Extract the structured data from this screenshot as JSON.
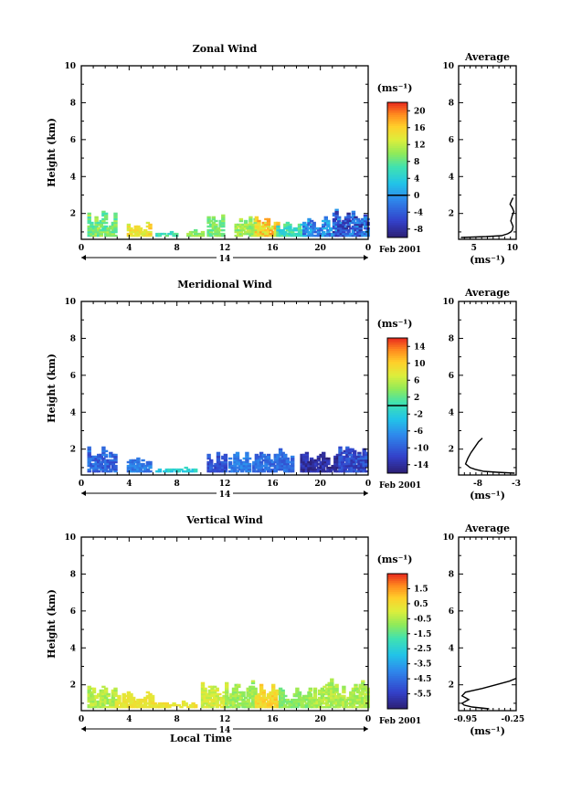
{
  "chart_data": [
    {
      "type": "heatmap",
      "title": "Zonal Wind",
      "ylabel": "Height (km)",
      "xlabel": "",
      "xticks": [
        "0",
        "4",
        "8",
        "12",
        "16",
        "20",
        "0"
      ],
      "yticks": [
        "2",
        "4",
        "6",
        "8",
        "10"
      ],
      "xlim": [
        0,
        24
      ],
      "ylim": [
        0.6,
        10
      ],
      "day_label": "14",
      "date_label": "Feb 2001",
      "colorbar": {
        "unit": "(ms⁻¹)",
        "ticks": [
          "20",
          "16",
          "12",
          "8",
          "4",
          "0",
          "-4",
          "-8"
        ],
        "range": [
          -10,
          22
        ],
        "zero_line": 0
      },
      "clusters": [
        {
          "t": [
            0.5,
            2.8
          ],
          "h": [
            0.75,
            2.25
          ],
          "v": [
            6,
            12
          ]
        },
        {
          "t": [
            3.8,
            5.8
          ],
          "h": [
            0.75,
            1.65
          ],
          "v": [
            12,
            17
          ]
        },
        {
          "t": [
            6.2,
            8.0
          ],
          "h": [
            0.75,
            1.0
          ],
          "v": [
            4,
            9
          ]
        },
        {
          "t": [
            8.8,
            10.0
          ],
          "h": [
            0.75,
            1.1
          ],
          "v": [
            8,
            12
          ]
        },
        {
          "t": [
            10.5,
            11.8
          ],
          "h": [
            0.75,
            2.2
          ],
          "v": [
            7,
            11
          ]
        },
        {
          "t": [
            12.8,
            14.5
          ],
          "h": [
            0.75,
            2.05
          ],
          "v": [
            8,
            13
          ]
        },
        {
          "t": [
            14.5,
            16.3
          ],
          "h": [
            0.75,
            1.95
          ],
          "v": [
            12,
            19
          ]
        },
        {
          "t": [
            16.3,
            18.5
          ],
          "h": [
            0.75,
            1.55
          ],
          "v": [
            3,
            9
          ]
        },
        {
          "t": [
            18.5,
            21.0
          ],
          "h": [
            0.75,
            1.9
          ],
          "v": [
            -5,
            3
          ]
        },
        {
          "t": [
            21.0,
            23.8
          ],
          "h": [
            0.75,
            2.4
          ],
          "v": [
            -9,
            1
          ]
        }
      ],
      "average": {
        "title": "Average",
        "unit_label": "(ms⁻¹)",
        "xticks": [
          "5",
          "10"
        ],
        "xlim": [
          3,
          10.5
        ],
        "profile": [
          [
            0.7,
            3.3
          ],
          [
            0.75,
            6.6
          ],
          [
            0.8,
            8.6
          ],
          [
            0.9,
            9.4
          ],
          [
            1.0,
            9.8
          ],
          [
            1.1,
            10.0
          ],
          [
            1.3,
            10.1
          ],
          [
            1.6,
            9.8
          ],
          [
            1.9,
            10.0
          ],
          [
            2.1,
            10.2
          ],
          [
            2.3,
            10.0
          ],
          [
            2.5,
            9.7
          ],
          [
            2.7,
            9.9
          ],
          [
            2.85,
            10.1
          ]
        ]
      }
    },
    {
      "type": "heatmap",
      "title": "Meridional Wind",
      "ylabel": "Height (km)",
      "xlabel": "",
      "xticks": [
        "0",
        "4",
        "8",
        "12",
        "16",
        "20",
        "0"
      ],
      "yticks": [
        "2",
        "4",
        "6",
        "8",
        "10"
      ],
      "xlim": [
        0,
        24
      ],
      "ylim": [
        0.6,
        10
      ],
      "day_label": "14",
      "date_label": "Feb 2001",
      "colorbar": {
        "unit": "(ms⁻¹)",
        "ticks": [
          "14",
          "10",
          "6",
          "2",
          "-2",
          "-6",
          "-10",
          "-14"
        ],
        "range": [
          -16,
          16
        ],
        "zero_line": 0
      },
      "clusters": [
        {
          "t": [
            0.5,
            2.8
          ],
          "h": [
            0.75,
            2.25
          ],
          "v": [
            -12,
            -7
          ]
        },
        {
          "t": [
            3.8,
            5.8
          ],
          "h": [
            0.75,
            1.65
          ],
          "v": [
            -10,
            -6
          ]
        },
        {
          "t": [
            6.2,
            9.5
          ],
          "h": [
            0.75,
            1.0
          ],
          "v": [
            -4,
            0
          ]
        },
        {
          "t": [
            10.5,
            12.0
          ],
          "h": [
            0.75,
            2.1
          ],
          "v": [
            -13,
            -9
          ]
        },
        {
          "t": [
            12.3,
            14.0
          ],
          "h": [
            0.75,
            1.95
          ],
          "v": [
            -10,
            -6
          ]
        },
        {
          "t": [
            14.3,
            17.5
          ],
          "h": [
            0.75,
            2.15
          ],
          "v": [
            -11,
            -7
          ]
        },
        {
          "t": [
            18.3,
            21.5
          ],
          "h": [
            0.75,
            2.05
          ],
          "v": [
            -16,
            -12
          ]
        },
        {
          "t": [
            21.5,
            23.8
          ],
          "h": [
            0.75,
            2.4
          ],
          "v": [
            -14,
            -9
          ]
        }
      ],
      "average": {
        "title": "Average",
        "unit_label": "(ms⁻¹)",
        "xticks": [
          "-8",
          "-3"
        ],
        "xlim": [
          -10.5,
          -3
        ],
        "profile": [
          [
            0.7,
            -3.2
          ],
          [
            0.75,
            -5.5
          ],
          [
            0.8,
            -7.2
          ],
          [
            0.9,
            -8.3
          ],
          [
            1.0,
            -9.0
          ],
          [
            1.2,
            -9.6
          ],
          [
            1.5,
            -9.3
          ],
          [
            1.8,
            -8.9
          ],
          [
            2.1,
            -8.4
          ],
          [
            2.4,
            -7.9
          ],
          [
            2.6,
            -7.4
          ]
        ]
      }
    },
    {
      "type": "heatmap",
      "title": "Vertical Wind",
      "ylabel": "Height (km)",
      "xlabel": "Local Time",
      "xticks": [
        "0",
        "4",
        "8",
        "12",
        "16",
        "20",
        "0"
      ],
      "yticks": [
        "2",
        "4",
        "6",
        "8",
        "10"
      ],
      "xlim": [
        0,
        24
      ],
      "ylim": [
        0.6,
        10
      ],
      "day_label": "14",
      "date_label": "Feb 2001",
      "colorbar": {
        "unit": "(ms⁻¹)",
        "ticks": [
          "1.5",
          "0.5",
          "-0.5",
          "-1.5",
          "-2.5",
          "-3.5",
          "-4.5",
          "-5.5"
        ],
        "range": [
          -6.5,
          2.5
        ],
        "zero_line": null
      },
      "clusters": [
        {
          "t": [
            0.5,
            2.8
          ],
          "h": [
            0.75,
            2.25
          ],
          "v": [
            -1.0,
            0.0
          ]
        },
        {
          "t": [
            2.8,
            6.0
          ],
          "h": [
            0.75,
            1.8
          ],
          "v": [
            0.0,
            0.6
          ]
        },
        {
          "t": [
            6.0,
            9.5
          ],
          "h": [
            0.75,
            1.1
          ],
          "v": [
            0.0,
            0.7
          ]
        },
        {
          "t": [
            10.0,
            12.0
          ],
          "h": [
            0.75,
            2.3
          ],
          "v": [
            -0.6,
            0.4
          ]
        },
        {
          "t": [
            12.0,
            14.5
          ],
          "h": [
            0.75,
            2.35
          ],
          "v": [
            -1.2,
            -0.3
          ]
        },
        {
          "t": [
            14.5,
            16.5
          ],
          "h": [
            0.75,
            2.3
          ],
          "v": [
            0.2,
            1.1
          ]
        },
        {
          "t": [
            16.5,
            19.0
          ],
          "h": [
            0.75,
            2.0
          ],
          "v": [
            -1.4,
            -0.6
          ]
        },
        {
          "t": [
            19.0,
            23.8
          ],
          "h": [
            0.75,
            2.4
          ],
          "v": [
            -1.0,
            -0.1
          ]
        }
      ],
      "average": {
        "title": "Average",
        "unit_label": "(ms⁻¹)",
        "xticks": [
          "-0.95",
          "-0.25"
        ],
        "xlim": [
          -1.05,
          -0.2
        ],
        "profile": [
          [
            0.7,
            -0.6
          ],
          [
            0.8,
            -0.85
          ],
          [
            0.9,
            -0.97
          ],
          [
            1.0,
            -1.0
          ],
          [
            1.2,
            -0.9
          ],
          [
            1.4,
            -1.0
          ],
          [
            1.6,
            -0.95
          ],
          [
            1.8,
            -0.7
          ],
          [
            2.0,
            -0.5
          ],
          [
            2.2,
            -0.3
          ],
          [
            2.35,
            -0.2
          ]
        ]
      }
    }
  ]
}
